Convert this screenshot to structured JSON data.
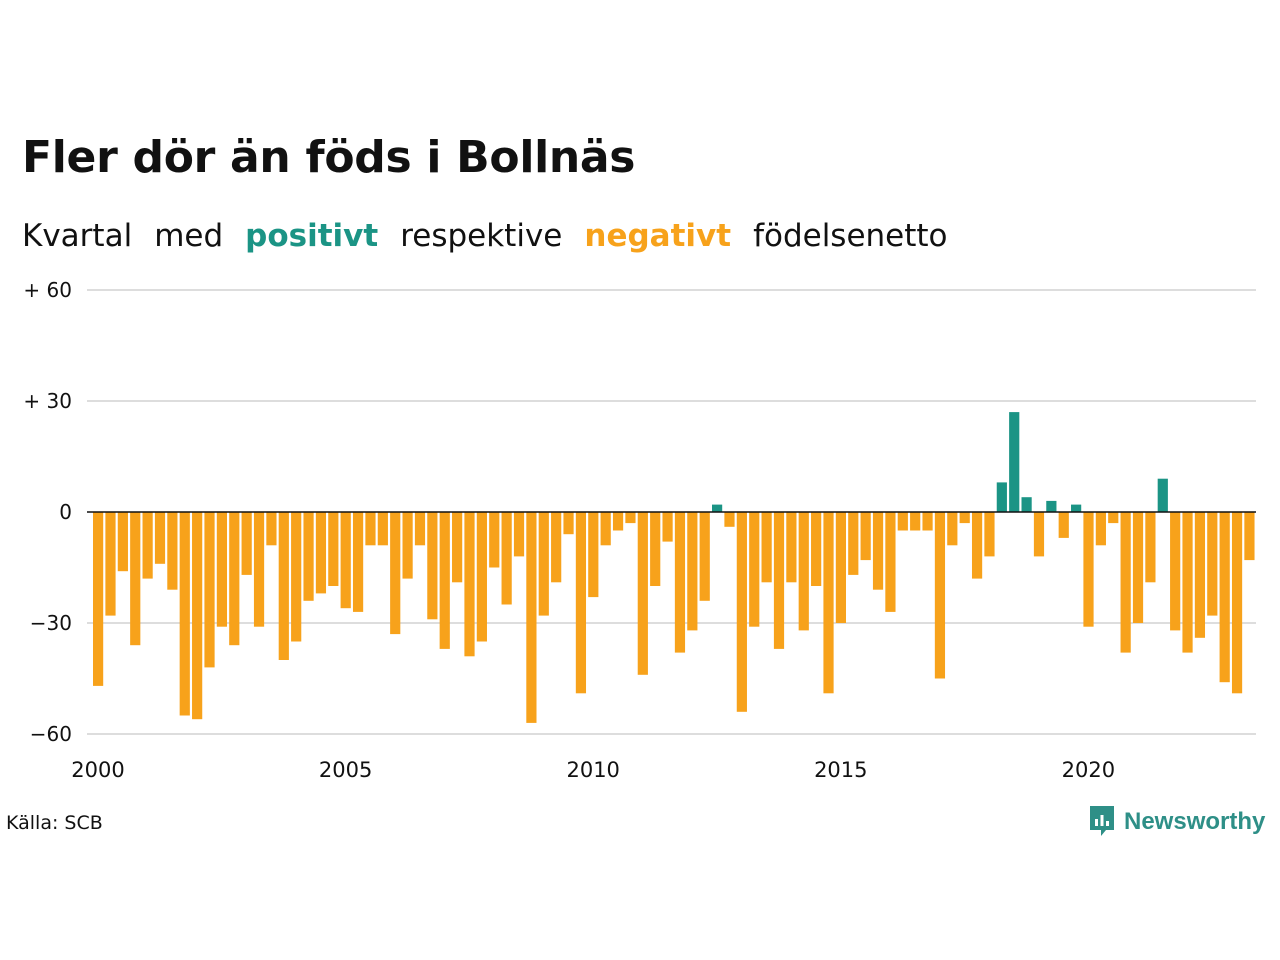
{
  "title": "Fler dör än föds i Bollnäs",
  "subtitle": {
    "part1": "Kvartal",
    "part2": "med",
    "positive_word": "positivt",
    "part3": "respektive",
    "negative_word": "negativt",
    "part4": "födelsenetto"
  },
  "source": "Källa: SCB",
  "logo_text": "Newsworthy",
  "logo_icon": "newsworthy-chart-bubble-icon",
  "colors": {
    "positive": "#1b9485",
    "negative": "#f7a21b",
    "grid": "#dddddd",
    "axis": "#111111",
    "text": "#111111",
    "brand": "#2e8f87"
  },
  "chart_data": {
    "type": "bar",
    "x_start": "2000 Q1",
    "x_ticks": [
      "2000",
      "2005",
      "2010",
      "2015",
      "2020"
    ],
    "y_ticks": [
      {
        "value": 60,
        "label": "+ 60"
      },
      {
        "value": 30,
        "label": "+ 30"
      },
      {
        "value": 0,
        "label": "0"
      },
      {
        "value": -30,
        "label": "−30"
      },
      {
        "value": -60,
        "label": "−60"
      }
    ],
    "ylim": [
      -60,
      60
    ],
    "grid": true,
    "values": [
      -47,
      -28,
      -16,
      -36,
      -18,
      -14,
      -21,
      -55,
      -56,
      -42,
      -31,
      -36,
      -17,
      -31,
      -9,
      -40,
      -35,
      -24,
      -22,
      -20,
      -26,
      -27,
      -9,
      -9,
      -33,
      -18,
      -9,
      -29,
      -37,
      -19,
      -39,
      -35,
      -15,
      -25,
      -12,
      -57,
      -28,
      -19,
      -6,
      -49,
      -23,
      -9,
      -5,
      -3,
      -44,
      -20,
      -8,
      -38,
      -32,
      -24,
      2,
      -4,
      -54,
      -31,
      -19,
      -37,
      -19,
      -32,
      -20,
      -49,
      -30,
      -17,
      -13,
      -21,
      -27,
      -5,
      -5,
      -5,
      -45,
      -9,
      -3,
      -18,
      -12,
      8,
      27,
      4,
      -12,
      3,
      -7,
      2,
      -31,
      -9,
      -3,
      -38,
      -30,
      -19,
      9,
      -32,
      -38,
      -34,
      -28,
      -46,
      -49,
      -13
    ]
  }
}
